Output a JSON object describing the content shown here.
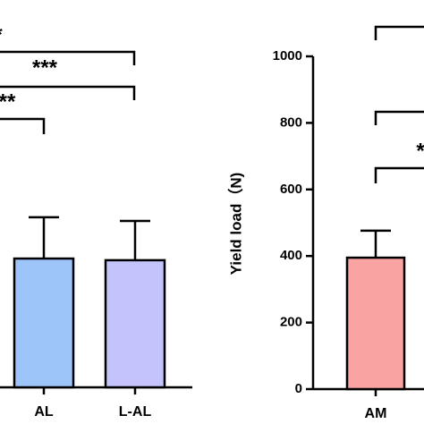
{
  "chart_data": [
    {
      "type": "bar",
      "categories": [
        "AL",
        "L-AL"
      ],
      "values": [
        387,
        382
      ],
      "errors": [
        124,
        118
      ],
      "colors": [
        "#9ec5fa",
        "#c4c3fb"
      ],
      "ylim": [
        0,
        1000
      ],
      "annotations": [
        "*",
        "***",
        "**"
      ]
    },
    {
      "type": "bar",
      "ylabel": "Yield load（N)",
      "categories": [
        "AM"
      ],
      "values": [
        395
      ],
      "errors": [
        81
      ],
      "colors": [
        "#f9a3a3"
      ],
      "ylim": [
        0,
        1000
      ],
      "yticks": [
        0,
        200,
        400,
        600,
        800,
        1000
      ],
      "annotations": [
        "*"
      ]
    }
  ]
}
